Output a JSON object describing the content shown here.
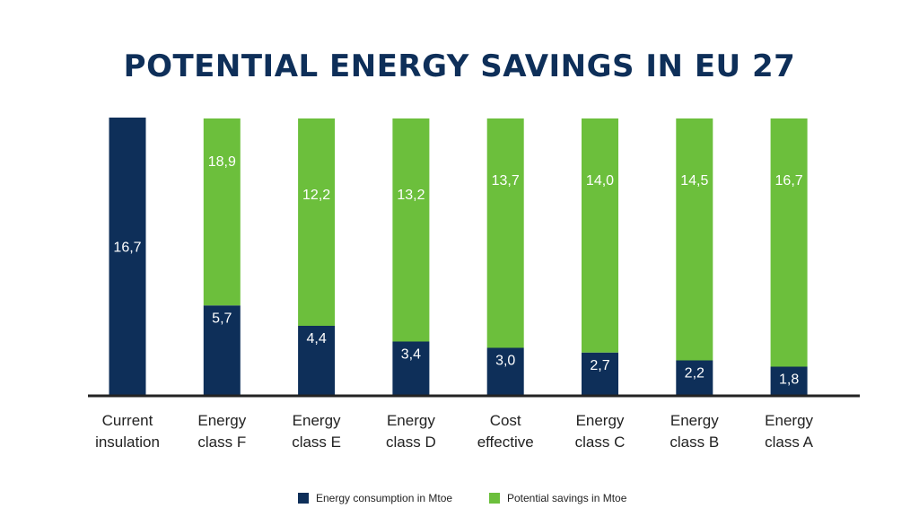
{
  "title": "POTENTIAL ENERGY SAVINGS IN EU 27",
  "colors": {
    "consumption": "#0e2f59",
    "savings": "#6cbf3c",
    "title": "#0e2f59",
    "axis": "#222222"
  },
  "chart_data": {
    "type": "bar",
    "stacked": true,
    "title": "POTENTIAL ENERGY SAVINGS IN EU 27",
    "xlabel": "",
    "ylabel": "",
    "categories": [
      [
        "Current",
        "insulation"
      ],
      [
        "Energy",
        "class F"
      ],
      [
        "Energy",
        "class E"
      ],
      [
        "Energy",
        "class D"
      ],
      [
        "Cost",
        "effective"
      ],
      [
        "Energy",
        "class C"
      ],
      [
        "Energy",
        "class B"
      ],
      [
        "Energy",
        "class A"
      ]
    ],
    "series": [
      {
        "name": "Energy consumption in Mtoe",
        "values": [
          16.7,
          5.7,
          4.4,
          3.4,
          3.0,
          2.7,
          2.2,
          1.8
        ],
        "labels": [
          "16,7",
          "5,7",
          "4,4",
          "3,4",
          "3,0",
          "2,7",
          "2,2",
          "1,8"
        ]
      },
      {
        "name": "Potential savings in Mtoe",
        "values": [
          null,
          18.9,
          12.2,
          13.2,
          13.7,
          14.0,
          14.5,
          16.7
        ],
        "labels": [
          "",
          "18,9",
          "12,2",
          "13,2",
          "13,7",
          "14,0",
          "14,5",
          "16,7"
        ]
      }
    ],
    "legend_position": "bottom",
    "grid": false,
    "axis_line": "x-baseline"
  }
}
